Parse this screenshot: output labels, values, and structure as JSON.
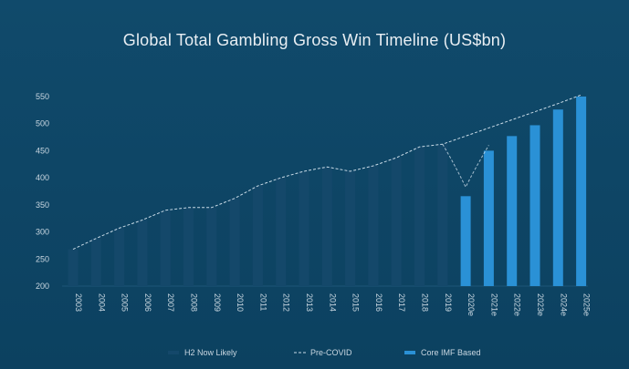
{
  "chart_data": {
    "type": "bar",
    "title": "Global Total Gambling Gross Win Timeline (US$bn)",
    "xlabel": "",
    "ylabel": "",
    "ylim": [
      200,
      560
    ],
    "yticks": [
      200,
      250,
      300,
      350,
      400,
      450,
      500,
      550
    ],
    "categories": [
      "2003",
      "2004",
      "2005",
      "2006",
      "2007",
      "2008",
      "2009",
      "2010",
      "2011",
      "2012",
      "2013",
      "2014",
      "2015",
      "2016",
      "2017",
      "2018",
      "2019",
      "2020e",
      "2021e",
      "2022e",
      "2023e",
      "2024e",
      "2025e"
    ],
    "series": [
      {
        "name": "H2 Now Likely",
        "color": "#14486a",
        "values": [
          268,
          288,
          307,
          322,
          340,
          345,
          345,
          362,
          385,
          400,
          412,
          420,
          412,
          422,
          437,
          457,
          462,
          null,
          null,
          null,
          null,
          null,
          null
        ]
      },
      {
        "name": "Core IMF Based",
        "color": "#2a91d6",
        "values": [
          null,
          null,
          null,
          null,
          null,
          null,
          null,
          null,
          null,
          null,
          null,
          null,
          null,
          null,
          null,
          null,
          null,
          366,
          450,
          477,
          497,
          526,
          550
        ]
      },
      {
        "name": "Pre-COVID",
        "color": "#c9dbe7",
        "style": "dashed-line",
        "values": [
          268,
          288,
          307,
          322,
          340,
          345,
          345,
          362,
          385,
          400,
          412,
          420,
          412,
          422,
          437,
          457,
          462,
          477,
          492,
          507,
          522,
          537,
          553
        ]
      }
    ],
    "grid": false,
    "legend": "bottom-center",
    "legend_items": [
      "H2 Now Likely",
      "Pre-COVID",
      "Core IMF Based"
    ]
  }
}
